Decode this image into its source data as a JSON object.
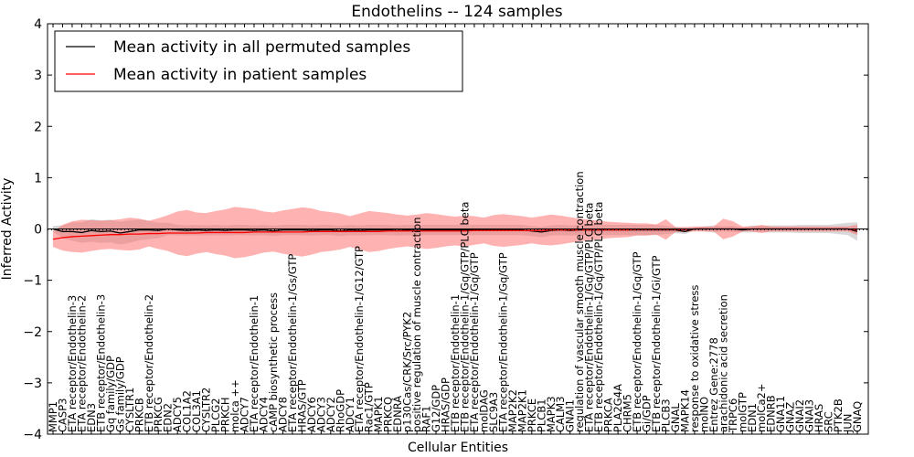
{
  "chart_data": {
    "type": "line",
    "title": "Endothelins -- 124 samples",
    "xlabel": "Cellular Entities",
    "ylabel": "Inferred Activity",
    "ylim": [
      -4,
      4
    ],
    "yticks": [
      -4,
      -3,
      -2,
      -1,
      0,
      1,
      2,
      3,
      4
    ],
    "grid": false,
    "legend_position": "top-left",
    "categories": [
      "MMP1",
      "CASP3",
      "ETA receptor/Endothelin-3",
      "ETA receptor/Endothelin-2",
      "EDN3",
      "ETB receptor/Endothelin-3",
      "Gq family/GDP",
      "Gs family/GDP",
      "CYSLTR1",
      "PRKCB",
      "ETB receptor/Endothelin-2",
      "PRKCG",
      "EDN2",
      "ADCY5",
      "COL1A2",
      "COL3A1",
      "CYSLTR2",
      "PLCG2",
      "PRKCH",
      "molca ++",
      "ADCY7",
      "ETA receptor/Endothelin-1",
      "ADCY4",
      "cAMP biosynthetic process",
      "ADCY8",
      "ETA receptor/Endothelin-1/Gs/GTP",
      "HRAS/GTP",
      "ADCY6",
      "ADCY3",
      "ADCY2",
      "RhoGDP",
      "ADCY1",
      "ETA receptor/Endothelin-1/G12/GTP",
      "Rac1/GTP",
      "MAPK1",
      "PRKCQ",
      "EDNRA",
      "p130Cas/CRK/Src/PYK2",
      "positive regulation of muscle contraction",
      "RAF1",
      "G12/GDP",
      "HRAS/GDP",
      "ETB receptor/Endothelin-1",
      "ETB receptor/Endothelin-1/Gq/GTP/PLC beta",
      "ETA receptor/Endothelin-1/Gq/GTP",
      "molDAG",
      "SLC9A3",
      "ETA receptor/Endothelin-1/Gq/GTP",
      "MAP2K2",
      "MAP2K1",
      "PRKCE",
      "PLCB1",
      "MAPK3",
      "CALM3",
      "GNAI1",
      "regulation of vascular smooth muscle contraction",
      "ETA receptor/Endothelin-1/Gq/GTP/PLC beta",
      "ETB receptor/Endothelin-1/Gq/GTP/PLC beta",
      "PRKCA",
      "PLA2G4A",
      "CHRM5",
      "ETB receptor/Endothelin-1/Gq/GTP",
      "Gi/GDP",
      "ETB receptor/Endothelin-1/Gi/GTP",
      "PLCB3",
      "GNAL",
      "MAPK14",
      "response to oxidative stress",
      "molNO",
      "Entrez Gene:2778",
      "arachidonic acid secretion",
      "TRPC6",
      "molGTP",
      "EDN1",
      "molCa2+",
      "EDNRB",
      "GNA11",
      "GNAZ",
      "GNAI2",
      "GNAI3",
      "HRAS",
      "SRC",
      "PTK2B",
      "JUN",
      "GNAQ"
    ],
    "series": [
      {
        "name": "Mean activity in all permuted samples",
        "color": "#000000",
        "values": [
          0.0,
          -0.05,
          -0.05,
          -0.07,
          -0.03,
          -0.05,
          -0.04,
          -0.08,
          -0.05,
          -0.02,
          -0.02,
          -0.03,
          0.0,
          -0.02,
          -0.03,
          -0.02,
          -0.03,
          -0.02,
          -0.03,
          -0.02,
          -0.02,
          -0.03,
          -0.02,
          -0.04,
          -0.02,
          -0.02,
          -0.02,
          -0.03,
          -0.02,
          -0.02,
          -0.04,
          -0.02,
          -0.03,
          -0.02,
          -0.02,
          -0.02,
          -0.03,
          -0.02,
          -0.03,
          -0.02,
          -0.02,
          -0.02,
          -0.02,
          -0.02,
          -0.02,
          -0.02,
          -0.02,
          -0.02,
          -0.02,
          -0.02,
          -0.04,
          -0.06,
          -0.03,
          -0.02,
          -0.03,
          -0.02,
          -0.02,
          -0.02,
          -0.02,
          -0.02,
          -0.02,
          -0.02,
          -0.02,
          -0.02,
          -0.02,
          -0.02,
          -0.05,
          0.0,
          0.0,
          0.0,
          0.0,
          0.0,
          -0.02,
          0.0,
          0.0,
          0.0,
          0.0,
          0.0,
          0.0,
          0.0,
          0.0,
          0.0,
          0.0,
          0.0,
          -0.05
        ],
        "band": [
          0.06,
          0.12,
          0.18,
          0.2,
          0.22,
          0.22,
          0.22,
          0.22,
          0.22,
          0.2,
          0.18,
          0.15,
          0.12,
          0.1,
          0.1,
          0.1,
          0.1,
          0.1,
          0.1,
          0.1,
          0.1,
          0.1,
          0.1,
          0.1,
          0.1,
          0.1,
          0.1,
          0.1,
          0.1,
          0.1,
          0.1,
          0.1,
          0.1,
          0.1,
          0.1,
          0.1,
          0.1,
          0.1,
          0.1,
          0.1,
          0.1,
          0.1,
          0.1,
          0.1,
          0.1,
          0.1,
          0.1,
          0.1,
          0.1,
          0.1,
          0.1,
          0.1,
          0.1,
          0.1,
          0.1,
          0.1,
          0.1,
          0.1,
          0.1,
          0.1,
          0.1,
          0.1,
          0.1,
          0.1,
          0.08,
          0.06,
          0.05,
          0.03,
          0.05,
          0.07,
          0.05,
          0.06,
          0.05,
          0.07,
          0.06,
          0.07,
          0.07,
          0.07,
          0.08,
          0.08,
          0.08,
          0.08,
          0.1,
          0.12,
          0.18
        ]
      },
      {
        "name": "Mean activity in patient samples",
        "color": "#ff0000",
        "values": [
          -0.2,
          -0.17,
          -0.15,
          -0.14,
          -0.13,
          -0.12,
          -0.11,
          -0.11,
          -0.1,
          -0.1,
          -0.09,
          -0.09,
          -0.08,
          -0.08,
          -0.08,
          -0.08,
          -0.07,
          -0.07,
          -0.07,
          -0.07,
          -0.07,
          -0.06,
          -0.06,
          -0.06,
          -0.06,
          -0.06,
          -0.06,
          -0.05,
          -0.05,
          -0.05,
          -0.05,
          -0.05,
          -0.05,
          -0.05,
          -0.05,
          -0.04,
          -0.04,
          -0.04,
          -0.04,
          -0.04,
          -0.04,
          -0.04,
          -0.04,
          -0.04,
          -0.03,
          -0.03,
          -0.03,
          -0.03,
          -0.03,
          -0.03,
          -0.03,
          -0.03,
          -0.02,
          -0.02,
          -0.02,
          -0.02,
          -0.02,
          -0.02,
          -0.02,
          -0.02,
          -0.02,
          -0.01,
          -0.01,
          -0.01,
          -0.01,
          -0.01,
          -0.01,
          0.0,
          0.0,
          0.0,
          0.0,
          0.0,
          0.0,
          0.0,
          0.0,
          0.0,
          0.0,
          0.0,
          0.0,
          0.0,
          0.0,
          0.0,
          0.0,
          0.0,
          -0.02
        ],
        "band": [
          0.15,
          0.25,
          0.3,
          0.32,
          0.3,
          0.28,
          0.28,
          0.3,
          0.32,
          0.3,
          0.25,
          0.3,
          0.35,
          0.42,
          0.45,
          0.4,
          0.38,
          0.42,
          0.45,
          0.5,
          0.48,
          0.45,
          0.4,
          0.38,
          0.42,
          0.45,
          0.48,
          0.45,
          0.4,
          0.38,
          0.35,
          0.3,
          0.35,
          0.4,
          0.38,
          0.35,
          0.32,
          0.3,
          0.32,
          0.35,
          0.33,
          0.3,
          0.28,
          0.3,
          0.28,
          0.25,
          0.3,
          0.32,
          0.3,
          0.28,
          0.25,
          0.28,
          0.3,
          0.28,
          0.25,
          0.22,
          0.2,
          0.18,
          0.16,
          0.15,
          0.14,
          0.12,
          0.12,
          0.1,
          0.2,
          0.05,
          0.05,
          0.05,
          0.05,
          0.05,
          0.2,
          0.15,
          0.05,
          0.05,
          0.08,
          0.05,
          0.05,
          0.05,
          0.05,
          0.05,
          0.05,
          0.05,
          0.05,
          0.05,
          0.1
        ]
      }
    ]
  }
}
